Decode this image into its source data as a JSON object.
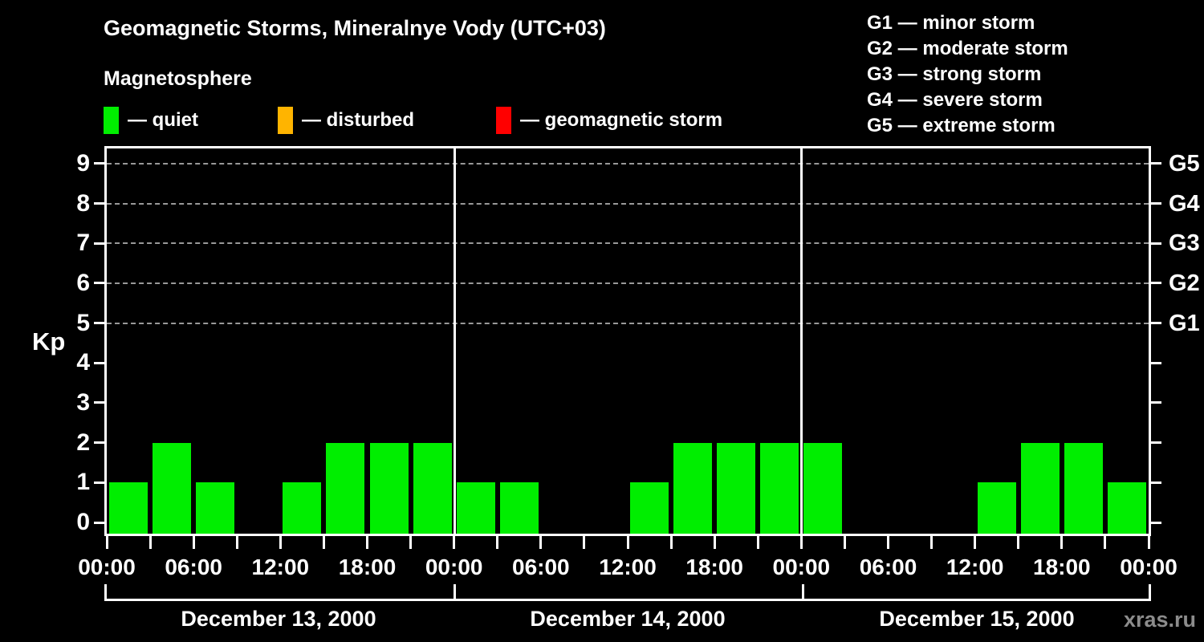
{
  "header": {
    "title": "Geomagnetic Storms, Mineralnye Vody (UTC+03)",
    "subtitle": "Magnetosphere"
  },
  "status_legend": {
    "items": [
      {
        "name": "quiet",
        "label": "— quiet",
        "color": "#00ee00"
      },
      {
        "name": "disturbed",
        "label": "— disturbed",
        "color": "#ffb400"
      },
      {
        "name": "geomagnetic-storm",
        "label": "— geomagnetic storm",
        "color": "#ff0000"
      }
    ]
  },
  "storm_scale_legend": {
    "items": [
      "G1 — minor storm",
      "G2 — moderate storm",
      "G3 — strong storm",
      "G4 — severe storm",
      "G5 — extreme storm"
    ]
  },
  "watermark": "xras.ru",
  "chart_data": {
    "type": "bar",
    "title": "Geomagnetic Storms, Mineralnye Vody (UTC+03)",
    "subtitle": "Magnetosphere",
    "ylabel": "Kp",
    "ylim": [
      0,
      9
    ],
    "yticks": [
      0,
      1,
      2,
      3,
      4,
      5,
      6,
      7,
      8,
      9
    ],
    "grid_kp": [
      5,
      6,
      7,
      8,
      9
    ],
    "grid_style": "dashed",
    "legend_position": "top",
    "right_axis": {
      "labels": [
        {
          "kp": 5,
          "label": "G1"
        },
        {
          "kp": 6,
          "label": "G2"
        },
        {
          "kp": 7,
          "label": "G3"
        },
        {
          "kp": 8,
          "label": "G4"
        },
        {
          "kp": 9,
          "label": "G5"
        }
      ]
    },
    "bar_interval_hours": 3,
    "x_tick_step_hours": 3,
    "x_tick_labels": [
      "00:00",
      "06:00",
      "12:00",
      "18:00",
      "00:00",
      "06:00",
      "12:00",
      "18:00",
      "00:00",
      "06:00",
      "12:00",
      "18:00",
      "00:00"
    ],
    "color_rules": {
      "quiet_max_kp": 3,
      "disturbed_max_kp": 4,
      "quiet_color": "#00ee00",
      "disturbed_color": "#ffb400",
      "storm_color": "#ff0000"
    },
    "days": [
      {
        "date": "December 13, 2000",
        "kp": [
          1,
          2,
          1,
          0,
          1,
          2,
          2,
          2
        ]
      },
      {
        "date": "December 14, 2000",
        "kp": [
          1,
          1,
          0,
          0,
          1,
          2,
          2,
          2
        ]
      },
      {
        "date": "December 15, 2000",
        "kp": [
          2,
          0,
          0,
          0,
          1,
          2,
          2,
          1
        ]
      }
    ]
  }
}
